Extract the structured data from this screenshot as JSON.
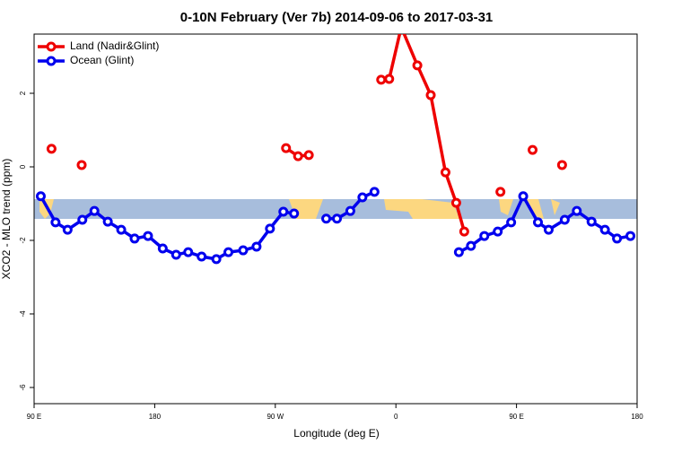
{
  "chart_data": {
    "type": "line",
    "title": "0-10N February (Ver 7b)   2014-09-06 to 2017-03-31",
    "x_label": "Longitude (deg E)",
    "y_label": "XCO2 - MLO trend (ppm)",
    "xlim": [
      90,
      540
    ],
    "ylim": [
      -6.44,
      3.61
    ],
    "xticks": [
      {
        "value": 90,
        "label": "90 E"
      },
      180,
      {
        "value": 270,
        "label": "90 W"
      },
      {
        "value": 360,
        "label": "0"
      },
      {
        "value": 450,
        "label": "90 E"
      },
      {
        "value": 540,
        "label": "180"
      }
    ],
    "yticks": [
      -6,
      -4,
      -2,
      0,
      2
    ],
    "legend": "top-left",
    "series": [
      {
        "name": "Land (Nadir&Glint)",
        "color": "#ee0000",
        "x": [
          103,
          115,
          125.5,
          200,
          278,
          287,
          295,
          322,
          349,
          355,
          364,
          376,
          386,
          397,
          405,
          411,
          425,
          438,
          450,
          462,
          473,
          484
        ],
        "values": [
          0.49,
          null,
          0.05,
          null,
          0.51,
          0.29,
          0.32,
          null,
          2.37,
          2.39,
          3.8,
          2.76,
          1.95,
          -0.15,
          -0.98,
          -1.76,
          null,
          -0.68,
          null,
          0.46,
          null,
          0.05
        ]
      },
      {
        "name": "Ocean (Glint)",
        "color": "#0000ee",
        "x": [
          95,
          106,
          115,
          126,
          135,
          145,
          155,
          165,
          175,
          186,
          196,
          205,
          215,
          226,
          235,
          246,
          256,
          266,
          276,
          284,
          296,
          308,
          316,
          326,
          335,
          344,
          375,
          407,
          416,
          426,
          436,
          446,
          455,
          466,
          474,
          486,
          495,
          506,
          516,
          525,
          535
        ],
        "values": [
          -0.8,
          -1.51,
          -1.71,
          -1.44,
          -1.2,
          -1.49,
          -1.71,
          -1.95,
          -1.88,
          -2.22,
          -2.39,
          -2.32,
          -2.44,
          -2.51,
          -2.32,
          -2.27,
          -2.17,
          -1.68,
          -1.22,
          -1.27,
          null,
          -1.41,
          -1.41,
          -1.2,
          -0.83,
          -0.68,
          null,
          -2.32,
          -2.15,
          -1.88,
          -1.76,
          -1.51,
          -0.8,
          -1.51,
          -1.71,
          -1.44,
          -1.2,
          -1.49,
          -1.71,
          -1.95,
          -1.88
        ]
      }
    ]
  }
}
